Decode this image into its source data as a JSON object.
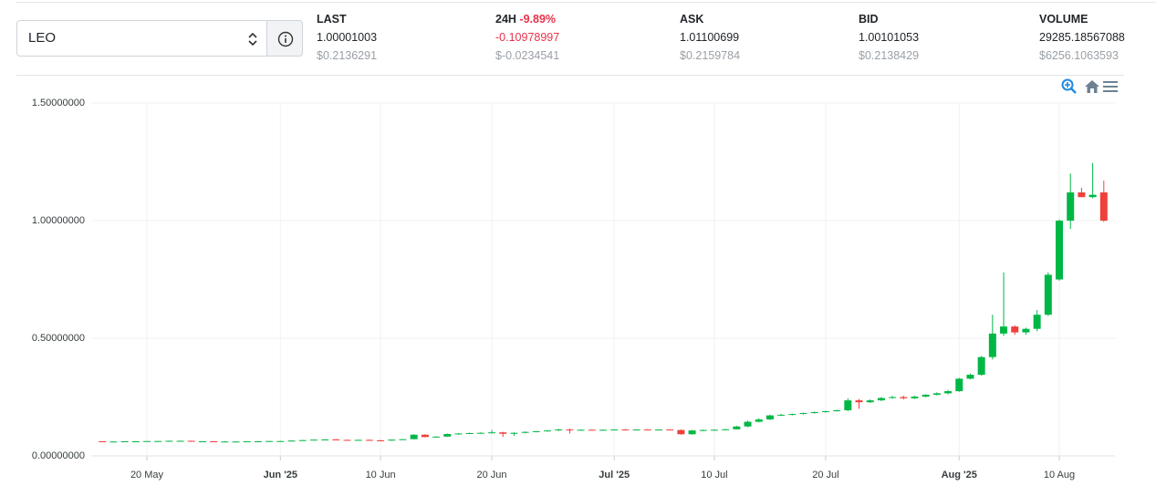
{
  "market": {
    "symbol": "LEO"
  },
  "stats": [
    {
      "label": "LAST",
      "value": "1.00001003",
      "usd": "$0.2136291"
    },
    {
      "label": "24H",
      "change": "-9.89%",
      "value": "-0.10978997",
      "usd": "$-0.0234541"
    },
    {
      "label": "ASK",
      "value": "1.01100699",
      "usd": "$0.2159784"
    },
    {
      "label": "BID",
      "value": "1.00101053",
      "usd": "$0.2138429"
    },
    {
      "label": "VOLUME",
      "value": "29285.18567088",
      "usd": "$6256.1063593"
    }
  ],
  "chart_data": {
    "type": "candlestick",
    "up_color": "#00b746",
    "down_color": "#ef403c",
    "grid": true,
    "xlim": [
      "2025-05-15",
      "2025-08-15"
    ],
    "xticks": [
      {
        "value": "2025-05-20",
        "label": "20 May"
      },
      {
        "value": "2025-06-01",
        "label": "Jun '25"
      },
      {
        "value": "2025-06-10",
        "label": "10 Jun"
      },
      {
        "value": "2025-06-20",
        "label": "20 Jun"
      },
      {
        "value": "2025-07-01",
        "label": "Jul '25"
      },
      {
        "value": "2025-07-10",
        "label": "10 Jul"
      },
      {
        "value": "2025-07-20",
        "label": "20 Jul"
      },
      {
        "value": "2025-08-01",
        "label": "Aug '25"
      },
      {
        "value": "2025-08-10",
        "label": "10 Aug"
      }
    ],
    "ylim": [
      0,
      1.5
    ],
    "yticks": [
      {
        "value": 0,
        "label": "0.00000000"
      },
      {
        "value": 0.5,
        "label": "0.50000000"
      },
      {
        "value": 1,
        "label": "1.00000000"
      },
      {
        "value": 1.5,
        "label": "1.50000000"
      }
    ],
    "start": "2025-05-16",
    "open": [
      0.062,
      0.061,
      0.061,
      0.062,
      0.062,
      0.063,
      0.063,
      0.064,
      0.064,
      0.062,
      0.062,
      0.061,
      0.061,
      0.061,
      0.062,
      0.062,
      0.063,
      0.063,
      0.065,
      0.067,
      0.069,
      0.07,
      0.068,
      0.067,
      0.068,
      0.066,
      0.065,
      0.069,
      0.071,
      0.09,
      0.08,
      0.082,
      0.093,
      0.095,
      0.097,
      0.098,
      0.1,
      0.094,
      0.098,
      0.102,
      0.105,
      0.108,
      0.112,
      0.11,
      0.111,
      0.11,
      0.111,
      0.112,
      0.111,
      0.112,
      0.111,
      0.112,
      0.11,
      0.092,
      0.108,
      0.11,
      0.111,
      0.113,
      0.125,
      0.145,
      0.155,
      0.172,
      0.175,
      0.178,
      0.182,
      0.186,
      0.19,
      0.194,
      0.236,
      0.228,
      0.236,
      0.246,
      0.25,
      0.245,
      0.252,
      0.26,
      0.266,
      0.275,
      0.328,
      0.345,
      0.42,
      0.52,
      0.55,
      0.525,
      0.54,
      0.6,
      0.75,
      1.0,
      1.12,
      1.1,
      1.12
    ],
    "high": [
      0.063,
      0.062,
      0.062,
      0.063,
      0.063,
      0.064,
      0.065,
      0.065,
      0.065,
      0.063,
      0.063,
      0.062,
      0.062,
      0.062,
      0.063,
      0.063,
      0.064,
      0.066,
      0.068,
      0.07,
      0.071,
      0.072,
      0.069,
      0.069,
      0.07,
      0.068,
      0.07,
      0.072,
      0.092,
      0.092,
      0.083,
      0.095,
      0.097,
      0.099,
      0.1,
      0.11,
      0.102,
      0.1,
      0.104,
      0.106,
      0.11,
      0.115,
      0.116,
      0.113,
      0.113,
      0.113,
      0.113,
      0.114,
      0.113,
      0.114,
      0.113,
      0.114,
      0.112,
      0.11,
      0.112,
      0.113,
      0.114,
      0.128,
      0.15,
      0.16,
      0.175,
      0.178,
      0.18,
      0.184,
      0.188,
      0.192,
      0.196,
      0.245,
      0.242,
      0.24,
      0.25,
      0.255,
      0.256,
      0.255,
      0.262,
      0.27,
      0.28,
      0.332,
      0.35,
      0.425,
      0.6,
      0.78,
      0.555,
      0.545,
      0.62,
      0.78,
      1.005,
      1.2,
      1.14,
      1.245,
      1.17
    ],
    "low": [
      0.061,
      0.06,
      0.06,
      0.061,
      0.061,
      0.062,
      0.062,
      0.063,
      0.062,
      0.061,
      0.06,
      0.06,
      0.06,
      0.06,
      0.061,
      0.061,
      0.062,
      0.062,
      0.064,
      0.066,
      0.067,
      0.068,
      0.066,
      0.066,
      0.066,
      0.064,
      0.064,
      0.068,
      0.07,
      0.079,
      0.078,
      0.081,
      0.09,
      0.093,
      0.095,
      0.095,
      0.08,
      0.085,
      0.096,
      0.1,
      0.103,
      0.106,
      0.095,
      0.108,
      0.109,
      0.108,
      0.109,
      0.11,
      0.109,
      0.11,
      0.109,
      0.11,
      0.09,
      0.09,
      0.106,
      0.108,
      0.109,
      0.112,
      0.122,
      0.142,
      0.152,
      0.17,
      0.172,
      0.176,
      0.18,
      0.184,
      0.188,
      0.19,
      0.2,
      0.225,
      0.233,
      0.243,
      0.24,
      0.242,
      0.249,
      0.257,
      0.262,
      0.272,
      0.325,
      0.34,
      0.41,
      0.51,
      0.515,
      0.515,
      0.53,
      0.595,
      0.745,
      0.965,
      1.1,
      1.095,
      0.995
    ],
    "close": [
      0.061,
      0.061,
      0.062,
      0.062,
      0.063,
      0.063,
      0.064,
      0.064,
      0.062,
      0.062,
      0.061,
      0.061,
      0.061,
      0.062,
      0.062,
      0.063,
      0.063,
      0.065,
      0.067,
      0.069,
      0.07,
      0.068,
      0.067,
      0.068,
      0.066,
      0.065,
      0.069,
      0.071,
      0.09,
      0.08,
      0.082,
      0.093,
      0.095,
      0.097,
      0.098,
      0.1,
      0.094,
      0.098,
      0.102,
      0.105,
      0.108,
      0.112,
      0.11,
      0.111,
      0.11,
      0.111,
      0.112,
      0.111,
      0.112,
      0.111,
      0.112,
      0.11,
      0.092,
      0.108,
      0.11,
      0.111,
      0.113,
      0.125,
      0.145,
      0.155,
      0.172,
      0.175,
      0.178,
      0.182,
      0.186,
      0.19,
      0.194,
      0.236,
      0.228,
      0.236,
      0.246,
      0.25,
      0.245,
      0.252,
      0.26,
      0.266,
      0.275,
      0.328,
      0.345,
      0.42,
      0.52,
      0.55,
      0.525,
      0.54,
      0.6,
      0.77,
      1.0,
      1.12,
      1.1,
      1.11,
      1.0
    ]
  }
}
